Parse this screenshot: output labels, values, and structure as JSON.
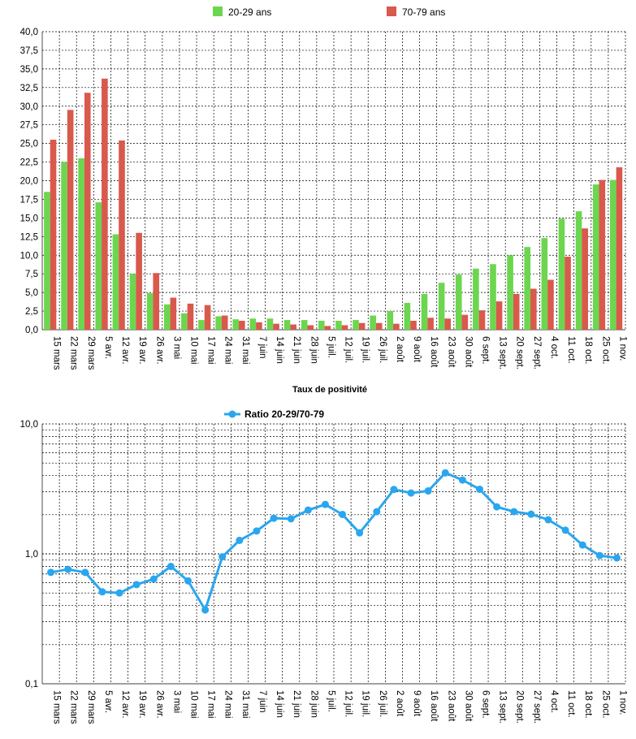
{
  "chart_data": [
    {
      "type": "bar",
      "caption": "Taux de positivité",
      "categories": [
        "15 mars",
        "22 mars",
        "29 mars",
        "5 avr.",
        "12 avr.",
        "19 avr.",
        "26 avr.",
        "3 mai",
        "10 mai",
        "17 mai",
        "24 mai",
        "31 mai",
        "7 juin",
        "14 juin",
        "21 juin",
        "28 juin",
        "5 juil.",
        "12 juil.",
        "19 juil.",
        "26 juil.",
        "2 août",
        "9 août",
        "16 août",
        "23 août",
        "30 août",
        "6 sept.",
        "13 sept.",
        "20 sept.",
        "27 sept.",
        "4 oct.",
        "11 oct.",
        "18 oct.",
        "25 oct.",
        "1 nov."
      ],
      "series": [
        {
          "name": "20-29 ans",
          "color": "#6cd64f",
          "values": [
            18.5,
            22.5,
            23.0,
            17.1,
            12.8,
            7.5,
            4.9,
            3.4,
            2.2,
            1.3,
            1.8,
            1.4,
            1.5,
            1.5,
            1.3,
            1.3,
            1.2,
            1.2,
            1.3,
            1.9,
            2.5,
            3.6,
            4.8,
            6.3,
            7.4,
            8.2,
            8.8,
            10.0,
            11.1,
            12.3,
            14.9,
            15.9,
            19.5,
            20.1
          ]
        },
        {
          "name": "70-79 ans",
          "color": "#d9594c",
          "values": [
            25.5,
            29.5,
            31.8,
            33.7,
            25.4,
            13.0,
            7.6,
            4.3,
            3.5,
            3.3,
            1.9,
            1.2,
            1.0,
            0.8,
            0.7,
            0.6,
            0.5,
            0.6,
            0.9,
            0.9,
            0.8,
            1.2,
            1.6,
            1.5,
            2.0,
            2.6,
            3.8,
            4.8,
            5.5,
            6.7,
            9.8,
            13.6,
            20.1,
            21.8
          ]
        }
      ],
      "ylim": [
        0,
        40
      ],
      "yticks": [
        "0,0",
        "2,5",
        "5,0",
        "7,5",
        "10,0",
        "12,5",
        "15,0",
        "17,5",
        "20,0",
        "22,5",
        "25,0",
        "27,5",
        "30,0",
        "32,5",
        "35,0",
        "37,5",
        "40,0"
      ]
    },
    {
      "type": "line",
      "yscale": "log",
      "categories": [
        "15 mars",
        "22 mars",
        "29 mars",
        "5 avr.",
        "12 avr.",
        "19 avr.",
        "26 avr.",
        "3 mai",
        "10 mai",
        "17 mai",
        "24 mai",
        "31 mai",
        "7 juin",
        "14 juin",
        "21 juin",
        "28 juin",
        "5 juil.",
        "12 juil.",
        "19 juil.",
        "26 juil.",
        "2 août",
        "9 août",
        "16 août",
        "23 août",
        "30 août",
        "6 sept.",
        "13 sept.",
        "20 sept.",
        "27 sept.",
        "4 oct.",
        "11 oct.",
        "18 oct.",
        "25 oct.",
        "1 nov."
      ],
      "series": [
        {
          "name": "Ratio 20-29/70-79",
          "color": "#2aa6ee",
          "values": [
            0.72,
            0.76,
            0.72,
            0.51,
            0.5,
            0.58,
            0.64,
            0.8,
            0.62,
            0.37,
            0.95,
            1.27,
            1.5,
            1.88,
            1.86,
            2.17,
            2.4,
            2.01,
            1.45,
            2.11,
            3.13,
            2.94,
            3.05,
            4.2,
            3.7,
            3.14,
            2.3,
            2.11,
            2.02,
            1.83,
            1.52,
            1.17,
            0.97,
            0.93
          ]
        }
      ],
      "ylim": [
        0.1,
        10
      ],
      "yticks": [
        "0,1",
        "1,0",
        "10,0"
      ]
    }
  ]
}
